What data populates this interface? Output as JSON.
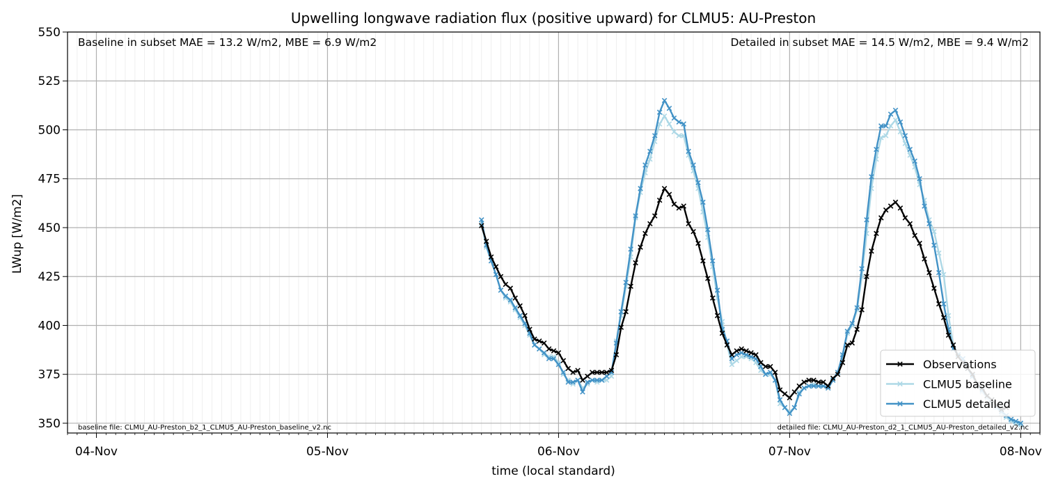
{
  "chart_data": {
    "type": "line",
    "title": "Upwelling longwave radiation flux (positive upward) for CLMU5: AU-Preston",
    "xlabel": "time (local standard)",
    "ylabel": "LWup [W/m2]",
    "x_range_hours": [
      -3,
      98
    ],
    "xlim": [
      "03-Nov 21:00",
      "08-Nov 02:00"
    ],
    "ylim": [
      345,
      550
    ],
    "yticks": [
      350,
      375,
      400,
      425,
      450,
      475,
      500,
      525,
      550
    ],
    "xtick_labels": [
      "04-Nov",
      "05-Nov",
      "06-Nov",
      "07-Nov",
      "08-Nov"
    ],
    "xticks_hours": [
      0,
      24,
      48,
      72,
      96
    ],
    "grid": true,
    "legend_position": "lower right",
    "annotations": {
      "baseline_stats": "Baseline in subset MAE = 13.2 W/m2, MBE = 6.9 W/m2",
      "detailed_stats": "Detailed in subset MAE = 14.5 W/m2, MBE = 9.4 W/m2",
      "baseline_file": "baseline file: CLMU_AU-Preston_b2_1_CLMU5_AU-Preston_baseline_v2.nc",
      "detailed_file": "detailed file: CLMU_AU-Preston_d2_1_CLMU5_AU-Preston_detailed_v2.nc"
    },
    "x_hours": [
      40.0,
      40.5,
      41.0,
      41.5,
      42.0,
      42.5,
      43.0,
      43.5,
      44.0,
      44.5,
      45.0,
      45.5,
      46.0,
      46.5,
      47.0,
      47.5,
      48.0,
      48.5,
      49.0,
      49.5,
      50.0,
      50.5,
      51.0,
      51.5,
      52.0,
      52.5,
      53.0,
      53.5,
      54.0,
      54.5,
      55.0,
      55.5,
      56.0,
      56.5,
      57.0,
      57.5,
      58.0,
      58.5,
      59.0,
      59.5,
      60.0,
      60.5,
      61.0,
      61.5,
      62.0,
      62.5,
      63.0,
      63.5,
      64.0,
      64.5,
      65.0,
      65.5,
      66.0,
      66.5,
      67.0,
      67.5,
      68.0,
      68.5,
      69.0,
      69.5,
      70.0,
      70.5,
      71.0,
      71.5,
      72.0,
      72.5,
      73.0,
      73.5,
      74.0,
      74.5,
      75.0,
      75.5,
      76.0,
      76.5,
      77.0,
      77.5,
      78.0,
      78.5,
      79.0,
      79.5,
      80.0,
      80.5,
      81.0,
      81.5,
      82.0,
      82.5,
      83.0,
      83.5,
      84.0,
      84.5,
      85.0,
      85.5,
      86.0,
      86.5,
      87.0,
      87.5,
      88.0,
      88.5,
      89.0,
      89.5,
      90.0,
      90.5,
      91.0,
      91.5,
      92.0,
      92.5,
      93.0,
      93.5,
      94.0,
      94.5,
      95.0,
      95.5,
      96.0
    ],
    "series": [
      {
        "name": "Observations",
        "color": "#000000",
        "values": [
          451,
          443,
          435,
          430,
          425,
          421,
          419,
          414,
          410,
          405,
          398,
          393,
          392,
          391,
          388,
          387,
          386,
          382,
          378,
          376,
          377,
          372,
          374,
          376,
          376,
          376,
          376,
          377,
          385,
          399,
          407,
          420,
          432,
          440,
          447,
          452,
          456,
          464,
          470,
          467,
          462,
          460,
          461,
          452,
          448,
          442,
          433,
          424,
          414,
          405,
          396,
          390,
          385,
          387,
          388,
          387,
          386,
          385,
          381,
          379,
          379,
          376,
          367,
          365,
          363,
          366,
          369,
          371,
          372,
          372,
          371,
          371,
          369,
          373,
          375,
          381,
          390,
          391,
          398,
          408,
          425,
          438,
          447,
          455,
          459,
          461,
          463,
          460,
          455,
          452,
          446,
          442,
          434,
          427,
          419,
          411,
          404,
          395,
          390,
          384,
          381,
          378,
          375,
          370,
          368,
          364,
          362,
          359,
          357,
          358,
          null,
          null,
          null
        ]
      },
      {
        "name": "CLMU5 baseline",
        "color": "#add8e6",
        "values": [
          452,
          440,
          433,
          426,
          418,
          414,
          412,
          408,
          404,
          400,
          395,
          390,
          388,
          385,
          384,
          384,
          381,
          375,
          372,
          370,
          372,
          368,
          370,
          372,
          371,
          372,
          372,
          374,
          392,
          405,
          420,
          435,
          455,
          468,
          478,
          485,
          494,
          503,
          507,
          503,
          499,
          497,
          497,
          487,
          479,
          470,
          458,
          445,
          430,
          414,
          402,
          390,
          380,
          382,
          384,
          384,
          383,
          381,
          377,
          375,
          375,
          372,
          360,
          358,
          356,
          358,
          366,
          368,
          369,
          370,
          369,
          369,
          368,
          372,
          376,
          384,
          396,
          400,
          408,
          425,
          447,
          470,
          485,
          496,
          497,
          502,
          505,
          499,
          493,
          487,
          481,
          472,
          464,
          454,
          448,
          437,
          426,
          405,
          390,
          385,
          383,
          378,
          374,
          370,
          366,
          363,
          360,
          358,
          355,
          353,
          351,
          350,
          349
        ]
      },
      {
        "name": "CLMU5 detailed",
        "color": "#4292c6",
        "values": [
          454,
          441,
          433,
          426,
          418,
          415,
          413,
          409,
          405,
          401,
          396,
          390,
          388,
          386,
          383,
          383,
          380,
          376,
          371,
          371,
          372,
          366,
          371,
          372,
          372,
          372,
          374,
          376,
          391,
          407,
          422,
          439,
          456,
          470,
          482,
          489,
          497,
          509,
          515,
          511,
          506,
          504,
          503,
          489,
          482,
          473,
          463,
          449,
          433,
          418,
          398,
          392,
          383,
          385,
          386,
          385,
          384,
          383,
          379,
          375,
          376,
          372,
          362,
          358,
          355,
          358,
          365,
          368,
          369,
          369,
          369,
          369,
          368,
          372,
          376,
          385,
          397,
          401,
          409,
          429,
          454,
          476,
          490,
          502,
          502,
          508,
          510,
          504,
          497,
          490,
          484,
          475,
          461,
          452,
          441,
          427,
          411,
          398,
          388,
          385,
          383,
          378,
          374,
          370,
          367,
          364,
          362,
          359,
          356,
          354,
          352,
          351,
          350
        ]
      }
    ]
  }
}
